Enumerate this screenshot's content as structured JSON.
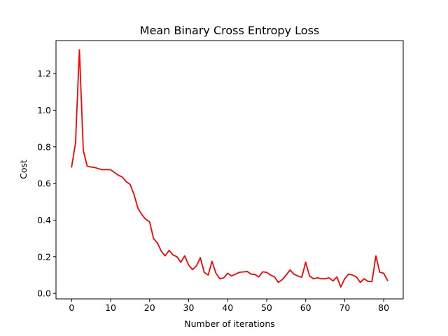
{
  "chart_data": {
    "type": "line",
    "title": "Mean Binary Cross Entropy Loss",
    "xlabel": "Number of iterations",
    "ylabel": "Cost",
    "xlim": [
      -4,
      85
    ],
    "ylim": [
      -0.03,
      1.38
    ],
    "xticks": [
      0,
      10,
      20,
      30,
      40,
      50,
      60,
      70,
      80
    ],
    "yticks": [
      0.0,
      0.2,
      0.4,
      0.6,
      0.8,
      1.0,
      1.2
    ],
    "xtick_labels": [
      "0",
      "10",
      "20",
      "30",
      "40",
      "50",
      "60",
      "70",
      "80"
    ],
    "ytick_labels": [
      "0.0",
      "0.2",
      "0.4",
      "0.6",
      "0.8",
      "1.0",
      "1.2"
    ],
    "grid": false,
    "legend": "none",
    "series": [
      {
        "color": "#ff0000",
        "x": [
          0,
          1,
          2,
          3,
          4,
          5,
          6,
          7,
          8,
          9,
          10,
          11,
          12,
          13,
          14,
          15,
          16,
          17,
          18,
          19,
          20,
          21,
          22,
          23,
          24,
          25,
          26,
          27,
          28,
          29,
          30,
          31,
          32,
          33,
          34,
          35,
          36,
          37,
          38,
          39,
          40,
          41,
          42,
          43,
          44,
          45,
          46,
          47,
          48,
          49,
          50,
          51,
          52,
          53,
          54,
          55,
          56,
          57,
          58,
          59,
          60,
          61,
          62,
          63,
          64,
          65,
          66,
          67,
          68,
          69,
          70,
          71,
          72,
          73,
          74,
          75,
          76,
          77,
          78,
          79,
          80,
          81
        ],
        "values": [
          0.69,
          0.82,
          1.33,
          0.78,
          0.695,
          0.69,
          0.687,
          0.68,
          0.675,
          0.676,
          0.675,
          0.66,
          0.645,
          0.635,
          0.61,
          0.595,
          0.54,
          0.465,
          0.43,
          0.405,
          0.39,
          0.3,
          0.275,
          0.23,
          0.205,
          0.235,
          0.21,
          0.2,
          0.17,
          0.205,
          0.155,
          0.13,
          0.15,
          0.195,
          0.115,
          0.1,
          0.175,
          0.11,
          0.08,
          0.085,
          0.11,
          0.095,
          0.105,
          0.115,
          0.117,
          0.12,
          0.105,
          0.103,
          0.09,
          0.118,
          0.115,
          0.1,
          0.09,
          0.06,
          0.075,
          0.1,
          0.128,
          0.105,
          0.095,
          0.088,
          0.17,
          0.095,
          0.08,
          0.085,
          0.08,
          0.08,
          0.085,
          0.068,
          0.09,
          0.035,
          0.08,
          0.105,
          0.1,
          0.09,
          0.06,
          0.08,
          0.065,
          0.065,
          0.205,
          0.115,
          0.11,
          0.07
        ]
      }
    ]
  }
}
